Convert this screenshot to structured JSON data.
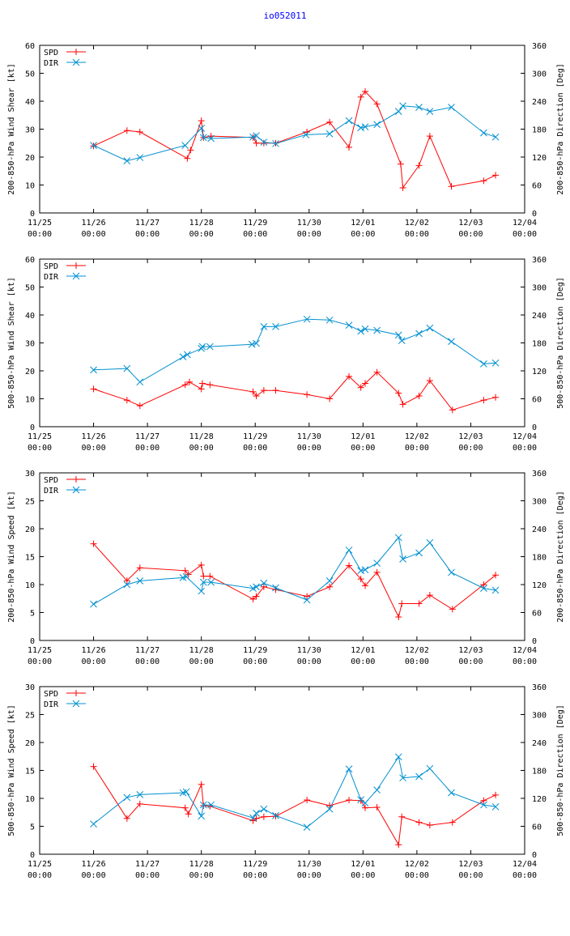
{
  "title": "io052011",
  "colors": {
    "spd": "#ff0000",
    "dir": "#0090d0",
    "axis": "#000000"
  },
  "time_axis": {
    "range_days": [
      0,
      9
    ],
    "ticks": [
      {
        "day": 0,
        "l1": "11/25",
        "l2": "00:00"
      },
      {
        "day": 1,
        "l1": "11/26",
        "l2": "00:00"
      },
      {
        "day": 2,
        "l1": "11/27",
        "l2": "00:00"
      },
      {
        "day": 3,
        "l1": "11/28",
        "l2": "00:00"
      },
      {
        "day": 4,
        "l1": "11/29",
        "l2": "00:00"
      },
      {
        "day": 5,
        "l1": "11/30",
        "l2": "00:00"
      },
      {
        "day": 6,
        "l1": "12/01",
        "l2": "00:00"
      },
      {
        "day": 7,
        "l1": "12/02",
        "l2": "00:00"
      },
      {
        "day": 8,
        "l1": "12/03",
        "l2": "00:00"
      },
      {
        "day": 9,
        "l1": "12/04",
        "l2": "00:00"
      }
    ]
  },
  "chart_data": [
    {
      "type": "line",
      "ylabel": "200-850-hPa Wind Shear [kt]",
      "y2label": "200-850-hPa Direction [Deg]",
      "ylim": [
        0,
        60
      ],
      "yticks": [
        0,
        10,
        20,
        30,
        40,
        50,
        60
      ],
      "y2lim": [
        0,
        360
      ],
      "y2ticks": [
        0,
        60,
        120,
        180,
        240,
        300,
        360
      ],
      "legend": [
        "SPD",
        "DIR"
      ],
      "series": [
        {
          "name": "SPD",
          "axis": "left",
          "marker": "plus",
          "x": [
            1.0,
            1.62,
            1.86,
            2.74,
            2.8,
            3.0,
            3.04,
            3.18,
            3.96,
            4.02,
            4.16,
            4.38,
            4.96,
            5.38,
            5.74,
            5.96,
            6.04,
            6.26,
            6.7,
            6.74,
            7.04,
            7.24,
            7.64,
            8.24,
            8.46
          ],
          "y": [
            24,
            29.5,
            29,
            19.5,
            22.5,
            33,
            27,
            27.5,
            27,
            25,
            25,
            25,
            29,
            32.5,
            23.5,
            41.5,
            43.5,
            39,
            17.5,
            9,
            17,
            27.5,
            9.5,
            11.5,
            13.5
          ]
        },
        {
          "name": "DIR",
          "axis": "right",
          "marker": "x",
          "x": [
            1.0,
            1.62,
            1.86,
            2.7,
            3.0,
            3.04,
            3.18,
            3.96,
            4.02,
            4.16,
            4.38,
            4.94,
            5.38,
            5.74,
            5.96,
            6.04,
            6.26,
            6.66,
            6.74,
            7.04,
            7.24,
            7.64,
            8.24,
            8.46
          ],
          "y": [
            145,
            112,
            119,
            145,
            182,
            162,
            160,
            163,
            166,
            152,
            149,
            168,
            170,
            198,
            183,
            185,
            190,
            218,
            230,
            227,
            218,
            227,
            172,
            163
          ]
        }
      ]
    },
    {
      "type": "line",
      "ylabel": "500-850-hPa Wind Shear [kt]",
      "y2label": "500-850-hPa Direction [Deg]",
      "ylim": [
        0,
        60
      ],
      "yticks": [
        0,
        10,
        20,
        30,
        40,
        50,
        60
      ],
      "y2lim": [
        0,
        360
      ],
      "y2ticks": [
        0,
        60,
        120,
        180,
        240,
        300,
        360
      ],
      "legend": [
        "SPD",
        "DIR"
      ],
      "series": [
        {
          "name": "SPD",
          "axis": "left",
          "marker": "plus",
          "x": [
            1.0,
            1.62,
            1.86,
            2.7,
            2.78,
            3.0,
            3.02,
            3.16,
            3.96,
            4.02,
            4.16,
            4.38,
            4.96,
            5.38,
            5.74,
            5.96,
            6.04,
            6.26,
            6.66,
            6.74,
            7.04,
            7.24,
            7.66,
            8.24,
            8.46
          ],
          "y": [
            13.5,
            9.5,
            7.5,
            15,
            16,
            13.5,
            15.5,
            15,
            12.5,
            11,
            13,
            13,
            11.5,
            10,
            18,
            14,
            15.5,
            19.5,
            12,
            8,
            11,
            16.5,
            6,
            9.5,
            10.5
          ]
        },
        {
          "name": "DIR",
          "axis": "right",
          "marker": "x",
          "x": [
            1.0,
            1.62,
            1.86,
            2.66,
            2.74,
            3.0,
            3.02,
            3.16,
            3.94,
            4.02,
            4.16,
            4.38,
            4.96,
            5.38,
            5.74,
            5.96,
            6.04,
            6.26,
            6.66,
            6.72,
            7.04,
            7.24,
            7.64,
            8.24,
            8.46
          ],
          "y": [
            122,
            125,
            96,
            150,
            155,
            168,
            172,
            172,
            177,
            179,
            215,
            215,
            231,
            229,
            218,
            205,
            210,
            207,
            197,
            185,
            200,
            212,
            183,
            135,
            137
          ]
        }
      ]
    },
    {
      "type": "line",
      "ylabel": "200-850-hPa Wind Speed [kt]",
      "y2label": "200-850-hPa Direction [Deg]",
      "ylim": [
        0,
        30
      ],
      "yticks": [
        0,
        5,
        10,
        15,
        20,
        25,
        30
      ],
      "y2lim": [
        0,
        360
      ],
      "y2ticks": [
        0,
        60,
        120,
        180,
        240,
        300,
        360
      ],
      "legend": [
        "SPD",
        "DIR"
      ],
      "series": [
        {
          "name": "SPD",
          "axis": "left",
          "marker": "plus",
          "x": [
            1.0,
            1.62,
            1.86,
            2.7,
            2.76,
            3.0,
            3.04,
            3.16,
            3.96,
            4.02,
            4.16,
            4.38,
            4.96,
            5.38,
            5.74,
            5.96,
            6.04,
            6.26,
            6.66,
            6.72,
            7.04,
            7.24,
            7.66,
            8.24,
            8.46
          ],
          "y": [
            17.3,
            10.7,
            13,
            12.5,
            11.8,
            13.5,
            11.5,
            11.5,
            7.4,
            7.9,
            9.6,
            9.1,
            7.9,
            9.6,
            13.4,
            11,
            9.8,
            12.2,
            4.2,
            6.6,
            6.6,
            8.1,
            5.6,
            10,
            11.7
          ]
        },
        {
          "name": "DIR",
          "axis": "right",
          "marker": "x",
          "x": [
            1.0,
            1.62,
            1.86,
            2.66,
            2.72,
            3.0,
            3.04,
            3.18,
            3.96,
            4.02,
            4.16,
            4.38,
            4.96,
            5.38,
            5.74,
            5.96,
            6.04,
            6.26,
            6.66,
            6.74,
            7.04,
            7.24,
            7.64,
            8.24,
            8.46
          ],
          "y": [
            78,
            120,
            128,
            135,
            137,
            106,
            125,
            125,
            112,
            115,
            123,
            113,
            87,
            128,
            194,
            150,
            152,
            166,
            221,
            175,
            188,
            210,
            146,
            112,
            108
          ]
        }
      ]
    },
    {
      "type": "line",
      "ylabel": "500-850-hPa Wind Speed [kt]",
      "y2label": "500-850-hPa Direction [Deg]",
      "ylim": [
        0,
        30
      ],
      "yticks": [
        0,
        5,
        10,
        15,
        20,
        25,
        30
      ],
      "y2lim": [
        0,
        360
      ],
      "y2ticks": [
        0,
        60,
        120,
        180,
        240,
        300,
        360
      ],
      "legend": [
        "SPD",
        "DIR"
      ],
      "series": [
        {
          "name": "SPD",
          "axis": "left",
          "marker": "plus",
          "x": [
            1.0,
            1.62,
            1.86,
            2.7,
            2.76,
            3.0,
            3.04,
            3.16,
            3.96,
            4.02,
            4.16,
            4.38,
            4.96,
            5.38,
            5.74,
            5.96,
            6.04,
            6.26,
            6.66,
            6.72,
            7.04,
            7.24,
            7.66,
            8.24,
            8.46
          ],
          "y": [
            15.7,
            6.4,
            9,
            8.3,
            7.2,
            12.5,
            8.7,
            8.6,
            6,
            6.4,
            6.7,
            6.8,
            9.7,
            8.7,
            9.7,
            9.6,
            8.3,
            8.4,
            1.7,
            6.7,
            5.7,
            5.2,
            5.7,
            9.6,
            10.6
          ]
        },
        {
          "name": "DIR",
          "axis": "right",
          "marker": "x",
          "x": [
            1.0,
            1.62,
            1.86,
            2.66,
            2.72,
            3.0,
            3.04,
            3.18,
            3.96,
            4.02,
            4.16,
            4.38,
            4.96,
            5.38,
            5.74,
            5.96,
            6.04,
            6.26,
            6.66,
            6.74,
            7.04,
            7.24,
            7.64,
            8.24,
            8.46
          ],
          "y": [
            65,
            122,
            128,
            132,
            134,
            82,
            106,
            106,
            78,
            88,
            97,
            83,
            58,
            97,
            183,
            117,
            110,
            138,
            209,
            164,
            167,
            184,
            132,
            106,
            102
          ]
        }
      ]
    }
  ]
}
